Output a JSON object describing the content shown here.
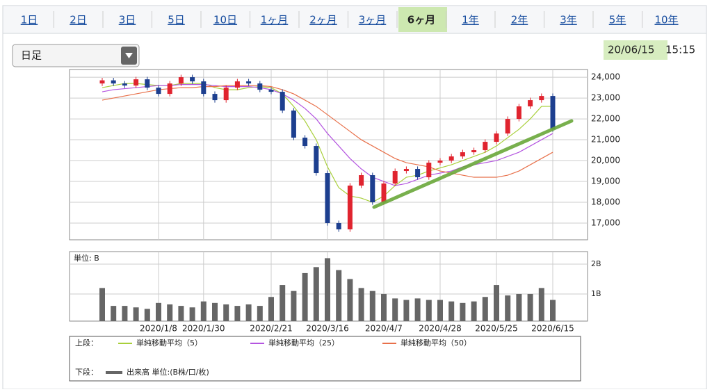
{
  "tabs": [
    "1日",
    "2日",
    "3日",
    "5日",
    "10日",
    "1ヶ月",
    "2ヶ月",
    "3ヶ月",
    "6ヶ月",
    "1年",
    "2年",
    "3年",
    "5年",
    "10年"
  ],
  "selected_tab": "6ヶ月",
  "dropdown": "日足",
  "timestamp": {
    "date": "20/06/15",
    "time": "15:15"
  },
  "legend": {
    "upper": "上段：",
    "lower": "下段："
  },
  "chart_data": [
    {
      "type": "candlestick",
      "categories": [
        null,
        null,
        null,
        null,
        null,
        "2020/1/8",
        null,
        null,
        null,
        "2020/1/30",
        null,
        null,
        null,
        null,
        null,
        "2020/2/21",
        null,
        null,
        null,
        null,
        "2020/3/16",
        null,
        null,
        null,
        null,
        "2020/4/7",
        null,
        null,
        null,
        null,
        "2020/4/28",
        null,
        null,
        null,
        null,
        "2020/5/25",
        null,
        null,
        null,
        null,
        "2020/6/15"
      ],
      "open": [
        23700,
        23850,
        23700,
        23600,
        23900,
        23500,
        23200,
        23700,
        24000,
        23800,
        23200,
        22900,
        23500,
        23800,
        23700,
        23400,
        23300,
        22400,
        21100,
        20700,
        19400,
        17000,
        16700,
        18800,
        19300,
        18000,
        18900,
        19500,
        19600,
        19200,
        19900,
        20000,
        20200,
        20400,
        20500,
        20900,
        21300,
        22000,
        22600,
        22900,
        23100
      ],
      "high": [
        23970,
        23970,
        23820,
        24020,
        24020,
        23620,
        23820,
        24120,
        24120,
        23920,
        23320,
        23620,
        23920,
        23920,
        23820,
        23520,
        23420,
        22520,
        21220,
        20820,
        19520,
        17120,
        18920,
        19420,
        19420,
        19020,
        19620,
        19720,
        19720,
        20020,
        20120,
        20320,
        20520,
        20620,
        21020,
        21420,
        22120,
        22720,
        23020,
        23220,
        23220
      ],
      "low": [
        23580,
        23580,
        23480,
        23480,
        23380,
        23080,
        23080,
        23580,
        23680,
        23080,
        22780,
        22780,
        23380,
        23580,
        23280,
        23180,
        22280,
        20980,
        20580,
        19280,
        16880,
        16580,
        16580,
        18680,
        17880,
        17880,
        18780,
        19380,
        19080,
        19080,
        19780,
        19880,
        20080,
        20280,
        20380,
        20780,
        21180,
        21880,
        22480,
        22780,
        21380
      ],
      "close": [
        23850,
        23700,
        23600,
        23900,
        23500,
        23200,
        23700,
        24000,
        23800,
        23200,
        22900,
        23500,
        23800,
        23700,
        23400,
        23300,
        22400,
        21100,
        20700,
        19400,
        17000,
        16700,
        18800,
        19300,
        18000,
        18900,
        19500,
        19600,
        19200,
        19900,
        20000,
        20200,
        20400,
        20500,
        20900,
        21300,
        22000,
        22600,
        22900,
        23100,
        21500
      ],
      "up_color": "#e0242f",
      "down_color": "#1d3f8f",
      "series": [
        {
          "name": "単純移動平均（5）",
          "color": "#a8cf3a",
          "values": [
            23500,
            23600,
            23700,
            23700,
            23650,
            23600,
            23600,
            23700,
            23700,
            23700,
            23500,
            23400,
            23400,
            23500,
            23550,
            23500,
            23200,
            22600,
            21900,
            21000,
            19700,
            18700,
            18300,
            18200,
            18000,
            18300,
            18800,
            19200,
            19300,
            19500,
            19650,
            19800,
            20000,
            20200,
            20400,
            20700,
            21100,
            21500,
            22000,
            22600,
            22600
          ]
        },
        {
          "name": "単純移動平均（25）",
          "color": "#b455e0",
          "values": [
            23300,
            23400,
            23450,
            23500,
            23550,
            23600,
            23600,
            23650,
            23650,
            23650,
            23600,
            23550,
            23550,
            23550,
            23500,
            23400,
            23200,
            22900,
            22500,
            22000,
            21300,
            20700,
            20100,
            19600,
            19200,
            19000,
            18800,
            18900,
            19100,
            19300,
            19400,
            19500,
            19700,
            19800,
            19900,
            20000,
            20200,
            20400,
            20700,
            21000,
            21300
          ]
        },
        {
          "name": "単純移動平均（50）",
          "color": "#e8704a",
          "values": [
            22900,
            23000,
            23100,
            23200,
            23300,
            23400,
            23450,
            23500,
            23500,
            23550,
            23550,
            23600,
            23600,
            23600,
            23600,
            23550,
            23400,
            23200,
            22900,
            22600,
            22200,
            21800,
            21400,
            21000,
            20700,
            20400,
            20100,
            19900,
            19800,
            19700,
            19500,
            19400,
            19300,
            19200,
            19200,
            19200,
            19300,
            19500,
            19800,
            20100,
            20400
          ]
        }
      ],
      "ylim": [
        16200,
        24370
      ],
      "yticks": [
        {
          "value": 17000,
          "label": "17,000"
        },
        {
          "value": 18000,
          "label": "18,000"
        },
        {
          "value": 19000,
          "label": "19,000"
        },
        {
          "value": 20000,
          "label": "20,000"
        },
        {
          "value": 21000,
          "label": "21,000"
        },
        {
          "value": 22000,
          "label": "22,000"
        },
        {
          "value": 23000,
          "label": "23,000"
        },
        {
          "value": 24000,
          "label": "24,000"
        }
      ],
      "grid": true
    },
    {
      "type": "bar",
      "unit_label": "単位: B",
      "series": [
        {
          "name": "出来高 単位:(B株/口/枚)",
          "color": "#666666",
          "values": [
            1.2,
            0.6,
            0.6,
            0.55,
            0.5,
            0.7,
            0.65,
            0.6,
            0.55,
            0.75,
            0.7,
            0.65,
            0.6,
            0.65,
            0.6,
            0.9,
            1.3,
            1.1,
            1.7,
            1.9,
            2.2,
            1.8,
            1.5,
            1.2,
            1.1,
            1.0,
            0.85,
            0.8,
            0.85,
            0.8,
            0.8,
            0.75,
            0.7,
            0.75,
            0.9,
            1.3,
            0.95,
            1.0,
            1.0,
            1.2,
            0.8
          ]
        }
      ],
      "ylim": [
        0.09,
        2.42
      ],
      "yticks": [
        {
          "value": 1,
          "label": "1B"
        },
        {
          "value": 2,
          "label": "2B"
        }
      ],
      "grid": true
    }
  ]
}
